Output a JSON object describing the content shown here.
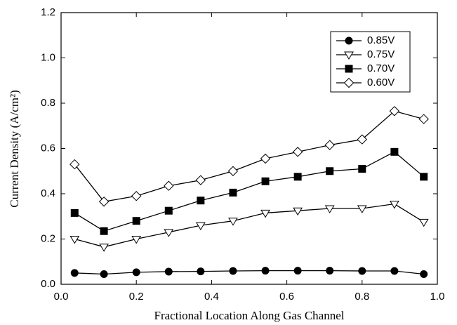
{
  "chart_data": {
    "type": "line",
    "xlabel": "Fractional Location Along Gas Channel",
    "ylabel": "Current Density (A/cm²)",
    "x": [
      0.036,
      0.114,
      0.2,
      0.286,
      0.371,
      0.457,
      0.543,
      0.629,
      0.714,
      0.8,
      0.886,
      0.964
    ],
    "series": [
      {
        "name": "0.85V",
        "color": "#000000",
        "marker": "circle",
        "values": [
          0.05,
          0.045,
          0.053,
          0.056,
          0.057,
          0.059,
          0.06,
          0.06,
          0.06,
          0.059,
          0.059,
          0.045
        ]
      },
      {
        "name": "0.75V",
        "color": "#000000",
        "marker": "triangle-down-open",
        "values": [
          0.2,
          0.165,
          0.2,
          0.23,
          0.26,
          0.28,
          0.315,
          0.325,
          0.335,
          0.335,
          0.355,
          0.275
        ]
      },
      {
        "name": "0.70V",
        "color": "#000000",
        "marker": "square",
        "values": [
          0.315,
          0.235,
          0.28,
          0.325,
          0.37,
          0.405,
          0.455,
          0.475,
          0.5,
          0.51,
          0.585,
          0.475
        ]
      },
      {
        "name": "0.60V",
        "color": "#000000",
        "marker": "diamond-open",
        "values": [
          0.53,
          0.365,
          0.39,
          0.435,
          0.46,
          0.5,
          0.555,
          0.585,
          0.615,
          0.64,
          0.765,
          0.73
        ]
      }
    ],
    "xlim": [
      0,
      1
    ],
    "ylim": [
      0,
      1.2
    ],
    "xticks": [
      {
        "value": 0,
        "label": "0.0"
      },
      0.2,
      0.4,
      0.6,
      0.8,
      {
        "value": 1,
        "label": "1.0"
      }
    ],
    "yticks": [
      {
        "value": 0,
        "label": "0.0"
      },
      0.2,
      0.4,
      0.6,
      0.8,
      {
        "value": 1,
        "label": "1.0"
      },
      0.2,
      {
        "value": 1.2,
        "label": "1.2"
      }
    ],
    "legend": "upper-right"
  }
}
